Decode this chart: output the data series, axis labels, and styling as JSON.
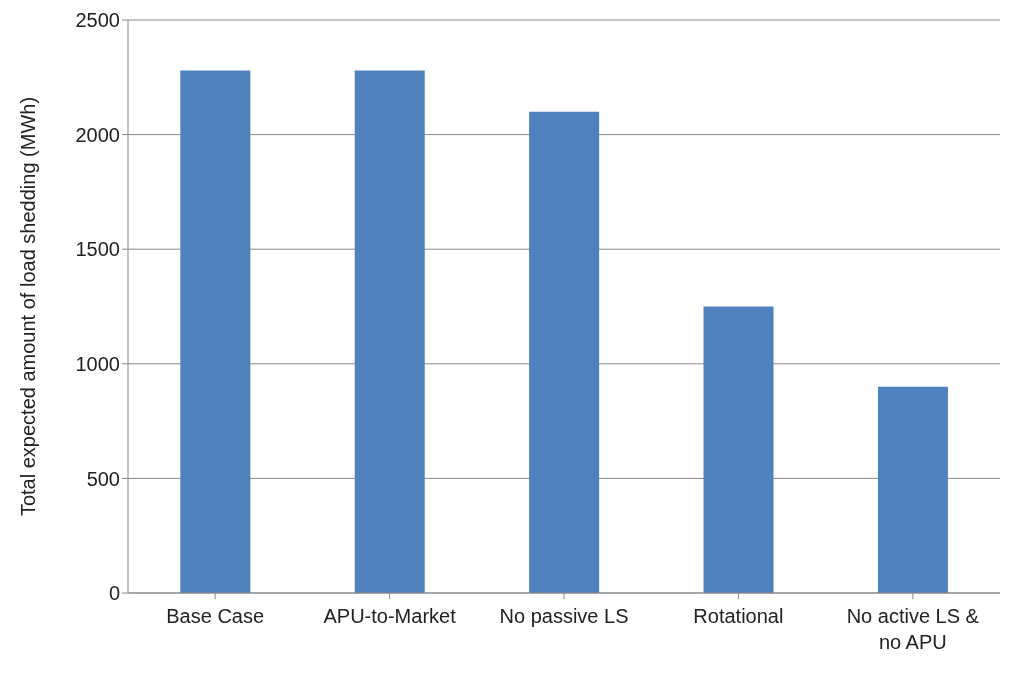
{
  "chart_data": {
    "type": "bar",
    "ylabel": "Total expected amount of load shedding (MWh)",
    "categories": [
      "Base Case",
      "APU-to-Market",
      "No passive LS",
      "Rotational",
      "No active LS & no APU"
    ],
    "values": [
      2280,
      2280,
      2100,
      1250,
      900
    ],
    "color": "#4f81bd",
    "ylim": [
      0,
      2500
    ],
    "yticks": [
      0,
      500,
      1000,
      1500,
      2000,
      2500
    ],
    "grid": "y",
    "legend": false
  }
}
